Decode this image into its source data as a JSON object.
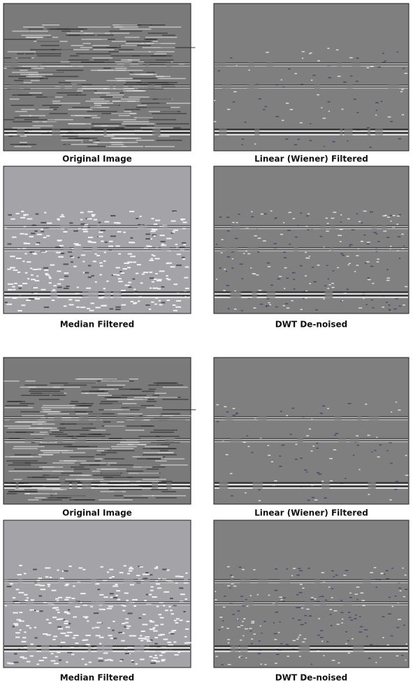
{
  "panels": [
    {
      "caption": "Original Image"
    },
    {
      "caption": "Linear (Wiener) Filtered"
    },
    {
      "caption": "Median Filtered"
    },
    {
      "caption": "DWT De-noised"
    },
    {
      "caption": "Original Image"
    },
    {
      "caption": "Linear (Wiener) Filtered"
    },
    {
      "caption": "Median Filtered"
    },
    {
      "caption": "DWT De-noised"
    }
  ]
}
